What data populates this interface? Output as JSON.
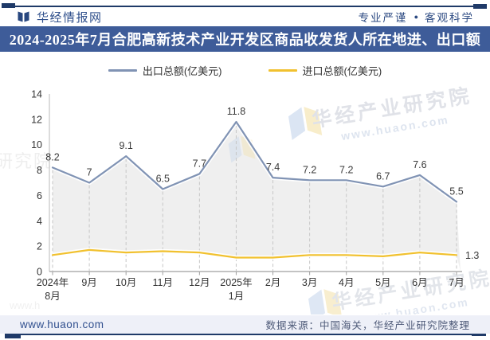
{
  "header": {
    "brand": "华经情报网",
    "slogan_left": "专业严谨",
    "bullet": "●",
    "slogan_right": "客观科学"
  },
  "title": "2024-2025年7月合肥高新技术产业开发区商品收发货人所在地进、出口额",
  "legend": {
    "export_label": "出口总额(亿美元)",
    "import_label": "进口总额(亿美元)"
  },
  "footer": {
    "website": "www.huaon.com",
    "source": "数据来源：中国海关，华经产业研究院整理"
  },
  "watermark": {
    "name": "华经产业研究院",
    "url": "www.huaon.com"
  },
  "colors": {
    "navy_border": "#1f3a68",
    "title_bar_bg": "#3e5c99",
    "export_line": "#8093b4",
    "import_line": "#f1c12f",
    "area_fill": "#efefef",
    "axis_line": "#c9c9c9",
    "x_axis_line": "#9f9f9f",
    "drop_line": "#c6c6c6",
    "label_text": "#3a3a3a",
    "tick_text": "#333333",
    "footer_bg": "#eef0f8"
  },
  "chart_data": {
    "type": "line",
    "title": "2024-2025年7月合肥高新技术产业开发区商品收发货人所在地进、出口额",
    "categories": [
      "2024年8月",
      "9月",
      "10月",
      "11月",
      "12月",
      "2025年1月",
      "2月",
      "3月",
      "4月",
      "5月",
      "6月",
      "7月"
    ],
    "categories_display": [
      [
        "2024年",
        "8月"
      ],
      [
        "9月"
      ],
      [
        "10月"
      ],
      [
        "11月"
      ],
      [
        "12月"
      ],
      [
        "2025年",
        "1月"
      ],
      [
        "2月"
      ],
      [
        "3月"
      ],
      [
        "4月"
      ],
      [
        "5月"
      ],
      [
        "6月"
      ],
      [
        "7月"
      ]
    ],
    "series": [
      {
        "name": "出口总额(亿美元)",
        "color": "#8093b4",
        "values": [
          8.2,
          7,
          9.1,
          6.5,
          7.7,
          11.8,
          7.4,
          7.2,
          7.2,
          6.7,
          7.6,
          5.5
        ],
        "labels": [
          "8.2",
          "7",
          "9.1",
          "6.5",
          "7.7",
          "11.8",
          "7.4",
          "7.2",
          "7.2",
          "6.7",
          "7.6",
          "5.5"
        ]
      },
      {
        "name": "进口总额(亿美元)",
        "color": "#f1c12f",
        "values": [
          1.3,
          1.7,
          1.5,
          1.6,
          1.5,
          1.1,
          1.1,
          1.3,
          1.3,
          1.2,
          1.5,
          1.3
        ],
        "labels": [
          "",
          "",
          "",
          "",
          "",
          "",
          "",
          "",
          "",
          "",
          "",
          "1.3"
        ]
      }
    ],
    "ylim": [
      0,
      14
    ],
    "ytick_step": 2,
    "yticks": [
      0,
      2,
      4,
      6,
      8,
      10,
      12,
      14
    ],
    "legend_position": "top",
    "grid": "vertical dashed drop lines from export points to x axis"
  }
}
